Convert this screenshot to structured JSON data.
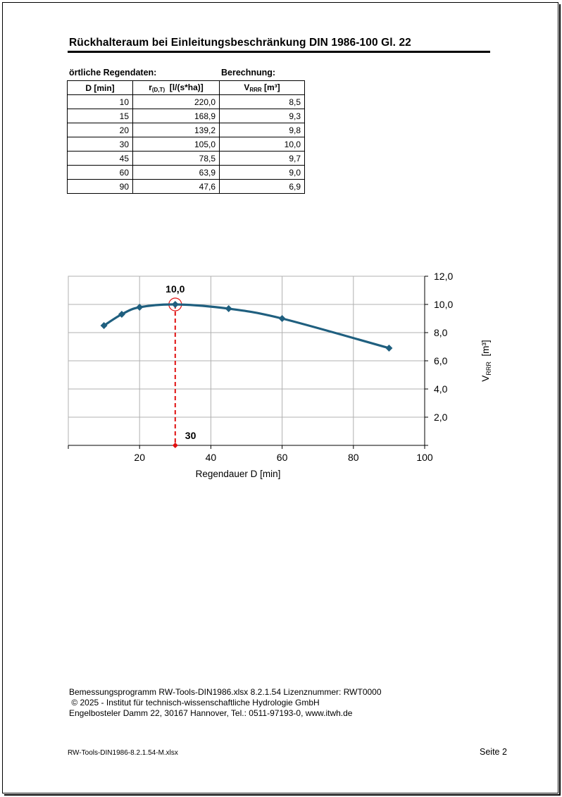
{
  "title": "Rückhalteraum bei Einleitungsbeschränkung DIN 1986-100 Gl. 22",
  "sections": {
    "left": "örtliche Regendaten:",
    "right": "Berechnung:"
  },
  "table": {
    "headers": {
      "d": "D   [min]",
      "r_main": "r",
      "r_sub": "(D,T)",
      "r_unit": "  [l/(s*ha)]",
      "v_main": "V",
      "v_sub": "RRR",
      "v_unit": " [m³]"
    },
    "rows": [
      {
        "d": "10",
        "r": "220,0",
        "v": "8,5"
      },
      {
        "d": "15",
        "r": "168,9",
        "v": "9,3"
      },
      {
        "d": "20",
        "r": "139,2",
        "v": "9,8"
      },
      {
        "d": "30",
        "r": "105,0",
        "v": "10,0"
      },
      {
        "d": "45",
        "r": "78,5",
        "v": "9,7"
      },
      {
        "d": "60",
        "r": "63,9",
        "v": "9,0"
      },
      {
        "d": "90",
        "r": "47,6",
        "v": "6,9"
      }
    ]
  },
  "chart_data": {
    "type": "line",
    "x": [
      10,
      15,
      20,
      30,
      45,
      60,
      90
    ],
    "series": [
      {
        "values": [
          8.5,
          9.3,
          9.8,
          10.0,
          9.7,
          9.0,
          6.9
        ],
        "color": "#1f5f7f"
      }
    ],
    "xlabel": "Regendauer D [min]",
    "ylabel_main": "V",
    "ylabel_sub": "RRR",
    "ylabel_unit": "  [m³]",
    "xlim": [
      0,
      100
    ],
    "ylim": [
      0,
      12
    ],
    "xticks": [
      20,
      40,
      60,
      80,
      100
    ],
    "xtick_labels": [
      "20",
      "40",
      "60",
      "80",
      "100"
    ],
    "yticks": [
      2,
      4,
      6,
      8,
      10,
      12
    ],
    "ytick_labels": [
      "2,0",
      "4,0",
      "6,0",
      "8,0",
      "10,0",
      "12,0"
    ],
    "grid": true,
    "y_axis_side": "right",
    "marker": {
      "x": 30,
      "y": 10.0,
      "y_label": "10,0",
      "x_label": "30",
      "color": "#e01010"
    }
  },
  "footer": {
    "line1": "Bemessungsprogramm RW-Tools-DIN1986.xlsx  8.2.1.54   Lizenznummer: RWT0000",
    "line2": " © 2025 - Institut für technisch-wissenschaftliche Hydrologie GmbH",
    "line3": "Engelbosteler Damm 22, 30167 Hannover, Tel.: 0511-97193-0, www.itwh.de",
    "file": "RW-Tools-DIN1986-8.2.1.54-M.xlsx",
    "page": "Seite 2"
  }
}
